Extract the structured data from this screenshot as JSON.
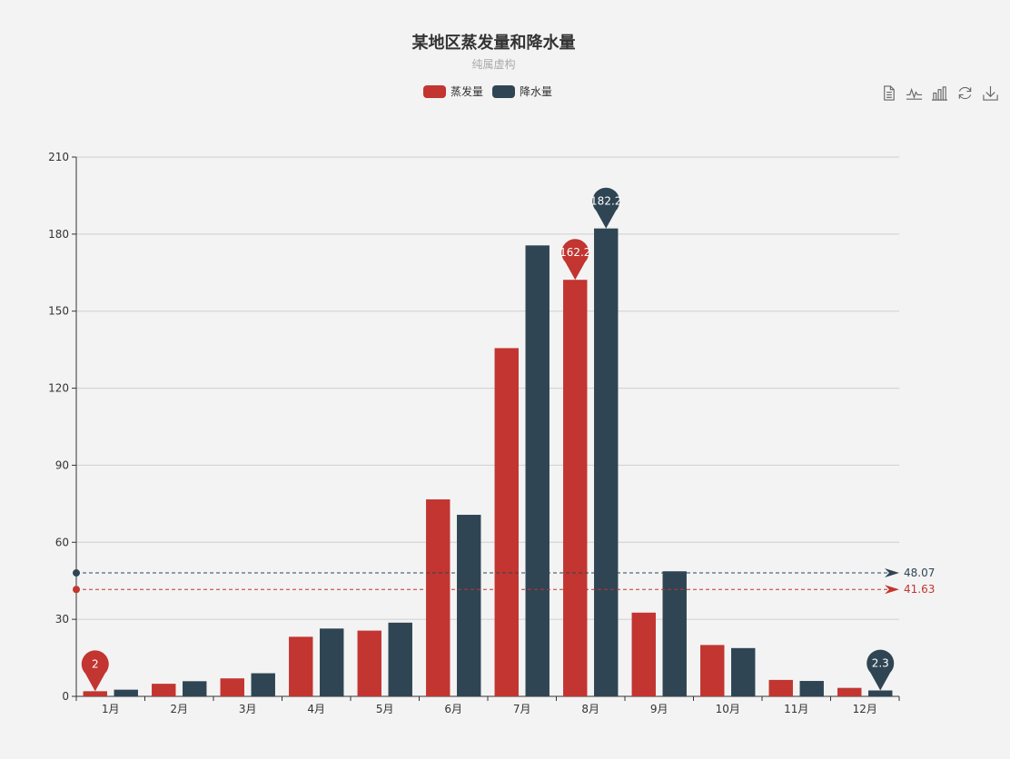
{
  "chart_data": {
    "type": "bar",
    "title": "某地区蒸发量和降水量",
    "subtitle": "纯属虚构",
    "categories": [
      "1月",
      "2月",
      "3月",
      "4月",
      "5月",
      "6月",
      "7月",
      "8月",
      "9月",
      "10月",
      "11月",
      "12月"
    ],
    "series": [
      {
        "name": "蒸发量",
        "color": "#c23531",
        "values": [
          2.0,
          4.9,
          7.0,
          23.2,
          25.6,
          76.7,
          135.6,
          162.2,
          32.6,
          20.0,
          6.4,
          3.3
        ],
        "mark_points": [
          {
            "label": "2",
            "category": "1月",
            "value": 2.0
          },
          {
            "label": "162.2",
            "category": "8月",
            "value": 162.2
          }
        ],
        "mark_line": {
          "label": "41.63",
          "value": 41.63
        }
      },
      {
        "name": "降水量",
        "color": "#2f4554",
        "values": [
          2.6,
          5.9,
          9.0,
          26.4,
          28.7,
          70.7,
          175.6,
          182.2,
          48.7,
          18.8,
          6.0,
          2.3
        ],
        "mark_points": [
          {
            "label": "182.2",
            "category": "8月",
            "value": 182.2
          },
          {
            "label": "2.3",
            "category": "12月",
            "value": 2.3
          }
        ],
        "mark_line": {
          "label": "48.07",
          "value": 48.07
        }
      }
    ],
    "ylim": [
      0,
      210
    ],
    "yticks": [
      0,
      30,
      60,
      90,
      120,
      150,
      180,
      210
    ],
    "grid": true,
    "legend_position": "top-center"
  },
  "toolbox": [
    "data-view-icon",
    "line-chart-icon",
    "bar-chart-icon",
    "restore-icon",
    "download-icon"
  ]
}
